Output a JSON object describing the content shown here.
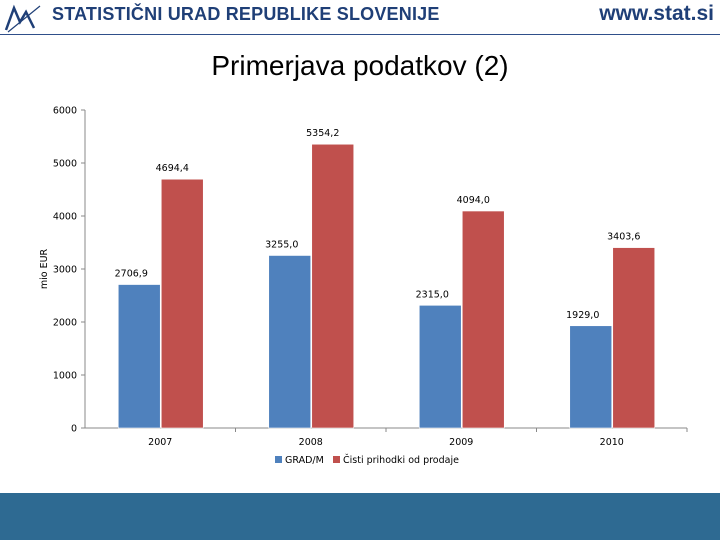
{
  "header": {
    "org_name": "STATISTIČNI URAD REPUBLIKE SLOVENIJE",
    "site_url": "www.stat.si"
  },
  "slide": {
    "title": "Primerjava podatkov (2)"
  },
  "colors": {
    "brand": "#1f3f77",
    "footer": "#2e6a92",
    "series_1": "#4f81bd",
    "series_2": "#c0504d"
  },
  "chart_data": {
    "type": "bar",
    "title": "",
    "xlabel": "",
    "ylabel": "mio EUR",
    "categories": [
      "2007",
      "2008",
      "2009",
      "2010"
    ],
    "series": [
      {
        "name": "GRAD/M",
        "values": [
          2706.9,
          3255.0,
          2315.0,
          1929.0
        ],
        "labels": [
          "2706,9",
          "3255,0",
          "2315,0",
          "1929,0"
        ]
      },
      {
        "name": "Čisti prihodki od prodaje",
        "values": [
          4694.4,
          5354.2,
          4094.0,
          3403.6
        ],
        "labels": [
          "4694,4",
          "5354,2",
          "4094,0",
          "3403,6"
        ]
      }
    ],
    "ylim": [
      0,
      6000
    ],
    "yticks": [
      0,
      1000,
      2000,
      3000,
      4000,
      5000,
      6000
    ],
    "grid": false,
    "legend_position": "bottom"
  }
}
